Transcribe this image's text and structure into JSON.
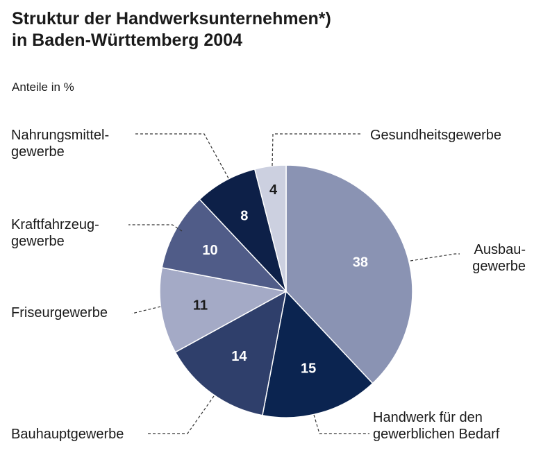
{
  "chart_data": {
    "type": "pie",
    "title_lines": [
      "Struktur der Handwerksunternehmen*)",
      "in Baden-Württemberg 2004"
    ],
    "subtitle": "Anteile in %",
    "slices": [
      {
        "name": "ausbaugewerbe",
        "label_lines": [
          "Ausbau-",
          "gewerbe"
        ],
        "value": 38,
        "color": "#8a93b3",
        "value_color": "#ffffff",
        "value_bold": true
      },
      {
        "name": "handwerk-gewerblichen-bedarf",
        "label_lines": [
          "Handwerk für den",
          "gewerblichen Bedarf"
        ],
        "value": 15,
        "color": "#0b2450",
        "value_color": "#ffffff",
        "value_bold": true
      },
      {
        "name": "bauhauptgewerbe",
        "label_lines": [
          "Bauhauptgewerbe"
        ],
        "value": 14,
        "color": "#2f3f6b",
        "value_color": "#ffffff",
        "value_bold": true
      },
      {
        "name": "friseurgewerbe",
        "label_lines": [
          "Friseurgewerbe"
        ],
        "value": 11,
        "color": "#a4aac6",
        "value_color": "#1a1a1a",
        "value_bold": false
      },
      {
        "name": "kraftfahrzeuggewerbe",
        "label_lines": [
          "Kraftfahrzeug-",
          "gewerbe"
        ],
        "value": 10,
        "color": "#505c88",
        "value_color": "#ffffff",
        "value_bold": true
      },
      {
        "name": "nahrungsmittelgewerbe",
        "label_lines": [
          "Nahrungsmittel-",
          "gewerbe"
        ],
        "value": 8,
        "color": "#0d2048",
        "value_color": "#ffffff",
        "value_bold": true
      },
      {
        "name": "gesundheitsgewerbe",
        "label_lines": [
          "Gesundheitsgewerbe"
        ],
        "value": 4,
        "color": "#ccd0e0",
        "value_color": "#1a1a1a",
        "value_bold": false
      }
    ]
  }
}
